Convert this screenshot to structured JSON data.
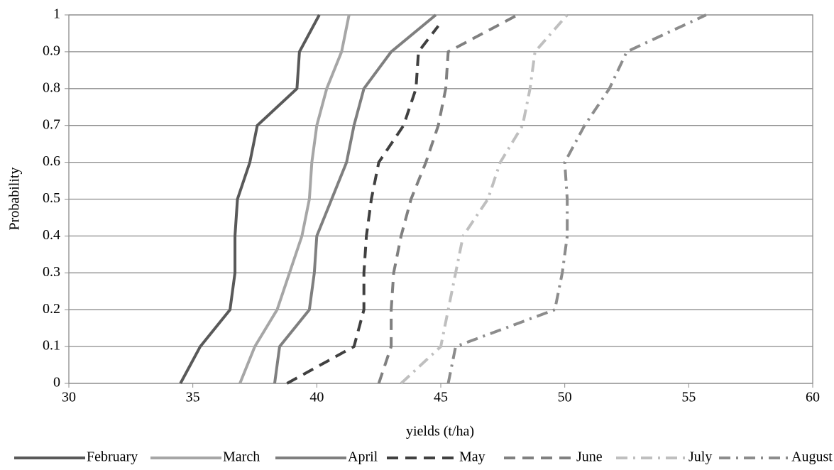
{
  "chart_data": {
    "type": "line",
    "x_label": "yields (t/ha)",
    "y_label": "Probability",
    "xlim": [
      30,
      60
    ],
    "xticks": [
      30,
      35,
      40,
      45,
      50,
      55,
      60
    ],
    "ylim": [
      0,
      1
    ],
    "yticks": [
      0,
      0.1,
      0.2,
      0.3,
      0.4,
      0.5,
      0.6,
      0.7,
      0.8,
      0.9,
      1
    ],
    "grid": true,
    "legend": "bottom",
    "series": [
      {
        "name": "February",
        "color": "#595959",
        "style": "solid",
        "x": [
          34.5,
          35.3,
          36.5,
          36.7,
          36.7,
          36.8,
          37.3,
          37.6,
          39.2,
          39.3,
          40.1
        ],
        "values": [
          0,
          0.1,
          0.2,
          0.3,
          0.4,
          0.5,
          0.6,
          0.7,
          0.8,
          0.9,
          1
        ]
      },
      {
        "name": "March",
        "color": "#a6a6a6",
        "style": "solid",
        "x": [
          36.9,
          37.5,
          38.4,
          38.9,
          39.4,
          39.7,
          39.8,
          40.0,
          40.4,
          41.0,
          41.3
        ],
        "values": [
          0,
          0.1,
          0.2,
          0.3,
          0.4,
          0.5,
          0.6,
          0.7,
          0.8,
          0.9,
          1
        ]
      },
      {
        "name": "April",
        "color": "#7f7f7f",
        "style": "solid",
        "x": [
          38.3,
          38.5,
          39.7,
          39.9,
          40.0,
          40.6,
          41.2,
          41.5,
          41.9,
          43.0,
          44.8
        ],
        "values": [
          0,
          0.1,
          0.2,
          0.3,
          0.4,
          0.5,
          0.6,
          0.7,
          0.8,
          0.9,
          1
        ]
      },
      {
        "name": "May",
        "color": "#404040",
        "style": "dash",
        "x": [
          38.8,
          41.5,
          41.9,
          41.9,
          42.0,
          42.2,
          42.5,
          43.5,
          44.0,
          44.1,
          44.9
        ],
        "values": [
          0,
          0.1,
          0.2,
          0.3,
          0.4,
          0.5,
          0.6,
          0.7,
          0.8,
          0.9,
          0.97
        ]
      },
      {
        "name": "June",
        "color": "#808080",
        "style": "dash",
        "x": [
          42.5,
          43.0,
          43.0,
          43.1,
          43.4,
          43.8,
          44.4,
          44.9,
          45.2,
          45.3,
          48.1
        ],
        "values": [
          0,
          0.1,
          0.2,
          0.3,
          0.4,
          0.5,
          0.6,
          0.7,
          0.8,
          0.9,
          1
        ]
      },
      {
        "name": "July",
        "color": "#bfbfbf",
        "style": "dashdot",
        "x": [
          43.4,
          45.0,
          45.3,
          45.6,
          45.9,
          46.9,
          47.4,
          48.3,
          48.6,
          48.8,
          50.1
        ],
        "values": [
          0,
          0.1,
          0.2,
          0.3,
          0.4,
          0.5,
          0.6,
          0.7,
          0.8,
          0.9,
          1
        ]
      },
      {
        "name": "August",
        "color": "#8c8c8c",
        "style": "dashdot",
        "x": [
          45.3,
          45.6,
          49.6,
          49.9,
          50.1,
          50.1,
          50.0,
          50.8,
          51.8,
          52.5,
          55.7
        ],
        "values": [
          0,
          0.1,
          0.2,
          0.3,
          0.4,
          0.5,
          0.6,
          0.7,
          0.8,
          0.9,
          1
        ]
      }
    ]
  }
}
